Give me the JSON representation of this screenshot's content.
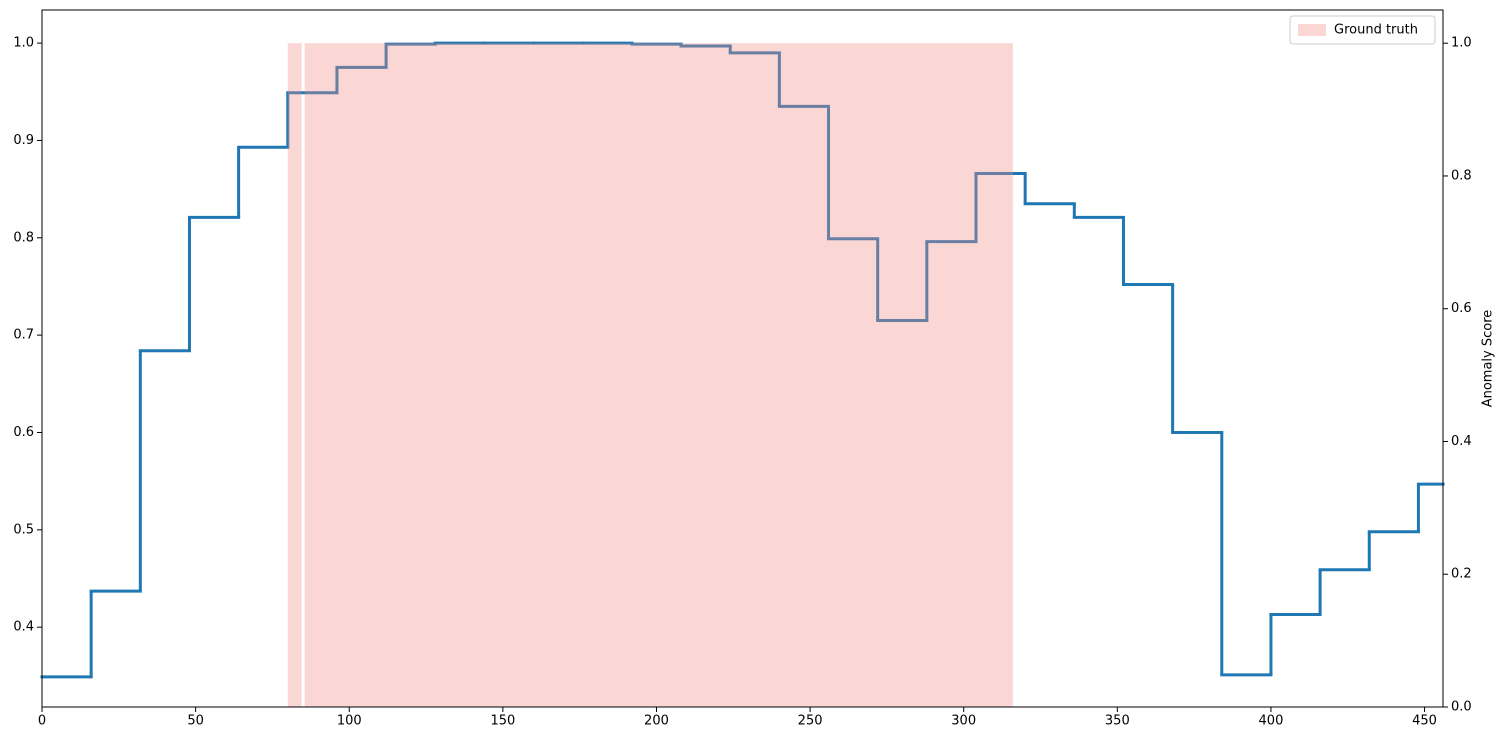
{
  "chart_data": {
    "type": "line",
    "drawstyle": "steps-post",
    "y2label": "Anomaly Score",
    "xlim": [
      0,
      456
    ],
    "xticks": [
      0,
      50,
      100,
      150,
      200,
      250,
      300,
      350,
      400,
      450
    ],
    "ylim": [
      0.318,
      1.034
    ],
    "yticks": [
      0.4,
      0.5,
      0.6,
      0.7,
      0.8,
      0.9,
      {
        "value": 1.0,
        "label": "1.0"
      }
    ],
    "y2lim": [
      0,
      1.05
    ],
    "y2ticks": [
      {
        "value": 0,
        "label": "0.0"
      },
      0.2,
      0.4,
      0.6,
      0.8,
      {
        "value": 1.0,
        "label": "1.0"
      }
    ],
    "legend": "upper right",
    "series": [
      {
        "color": "#1f77b4",
        "x": [
          0,
          16,
          32,
          48,
          64,
          80,
          96,
          112,
          128,
          144,
          160,
          176,
          192,
          208,
          224,
          240,
          256,
          272,
          288,
          304,
          320,
          336,
          352,
          368,
          384,
          400,
          416,
          432,
          448
        ],
        "values": [
          0.349,
          0.437,
          0.684,
          0.821,
          0.893,
          0.949,
          0.975,
          0.999,
          1.0,
          1.0,
          1.0,
          1.0,
          0.999,
          0.997,
          0.99,
          0.935,
          0.799,
          0.715,
          0.796,
          0.866,
          0.835,
          0.821,
          0.752,
          0.6,
          0.351,
          0.413,
          0.459,
          0.498,
          0.547
        ]
      },
      {
        "name": "Ground truth",
        "type": "span",
        "axis": "y2",
        "color": "#f08c84",
        "x": [
          [
            80,
            84.5
          ],
          [
            85.5,
            316
          ]
        ],
        "values": [
          1.0,
          1.0
        ]
      }
    ]
  }
}
